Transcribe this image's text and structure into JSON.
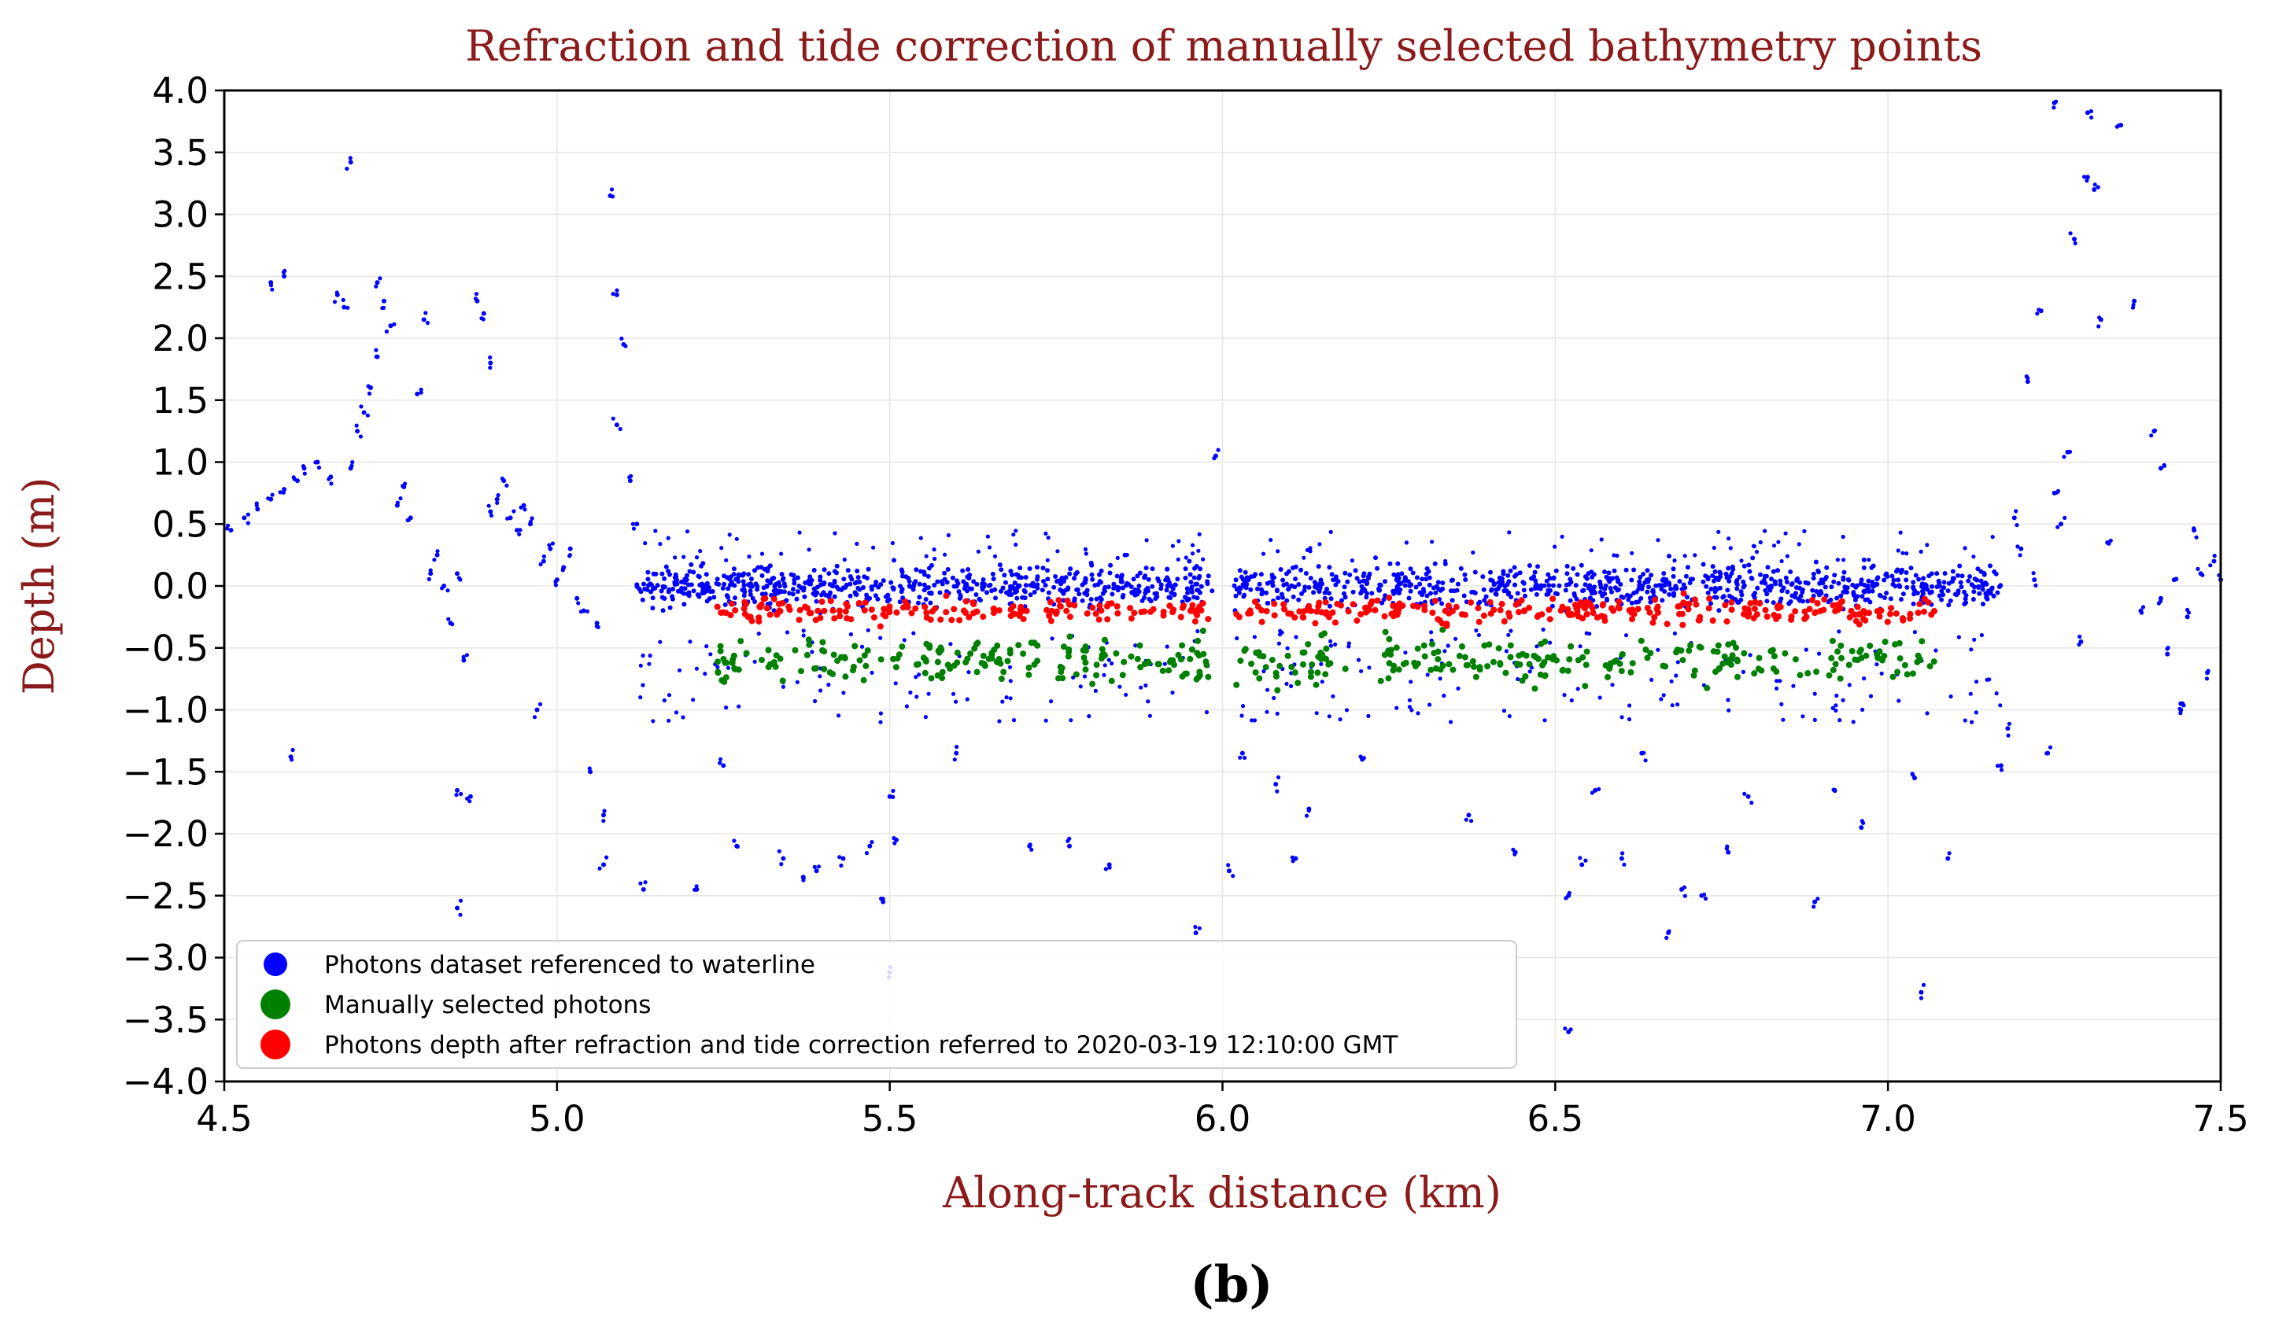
{
  "colors": {
    "waterline": "#0000ff",
    "manual": "#008000",
    "corrected": "#ff0000",
    "text_accent": "#8b1a1a",
    "grid": "#e6e6e6"
  },
  "panel_label": "(b)",
  "chart_data": {
    "type": "scatter",
    "title": "Refraction and tide correction of manually selected bathymetry points",
    "xlabel": "Along-track distance (km)",
    "ylabel": "Depth (m)",
    "xlim": [
      4.5,
      7.5
    ],
    "ylim": [
      -4.0,
      4.0
    ],
    "grid": true,
    "xticks": [
      4.5,
      5.0,
      5.5,
      6.0,
      6.5,
      7.0,
      7.5
    ],
    "xtick_labels": [
      "4.5",
      "5.0",
      "5.5",
      "6.0",
      "6.5",
      "7.0",
      "7.5"
    ],
    "yticks": [
      4.0,
      3.5,
      3.0,
      2.5,
      2.0,
      1.5,
      1.0,
      0.5,
      0.0,
      -0.5,
      -1.0,
      -1.5,
      -2.0,
      -2.5,
      -3.0,
      -3.5,
      -4.0
    ],
    "ytick_labels": [
      "4.0",
      "3.5",
      "3.0",
      "2.5",
      "2.0",
      "1.5",
      "1.0",
      "0.5",
      "0.0",
      "−0.5",
      "−1.0",
      "−1.5",
      "−2.0",
      "−2.5",
      "−3.0",
      "−3.5",
      "−4.0"
    ],
    "legend_position": "lower-left",
    "series": [
      {
        "name": "Photons dataset referenced to waterline",
        "color": "#0000ff",
        "dense_band": {
          "x_start": 5.12,
          "x_end": 7.17,
          "gap": [
            5.985,
            6.015
          ],
          "center": 0.0,
          "spread": 0.12,
          "count": 1400
        },
        "points": [
          [
            4.51,
            0.45
          ],
          [
            4.53,
            0.55
          ],
          [
            4.55,
            0.62
          ],
          [
            4.57,
            0.7
          ],
          [
            4.59,
            0.78
          ],
          [
            4.61,
            0.85
          ],
          [
            4.62,
            0.95
          ],
          [
            4.64,
            1.0
          ],
          [
            4.66,
            0.88
          ],
          [
            4.67,
            2.35
          ],
          [
            4.68,
            2.25
          ],
          [
            4.69,
            0.95
          ],
          [
            4.7,
            1.25
          ],
          [
            4.71,
            1.4
          ],
          [
            4.72,
            1.6
          ],
          [
            4.73,
            1.85
          ],
          [
            4.73,
            2.45
          ],
          [
            4.74,
            2.3
          ],
          [
            4.75,
            2.1
          ],
          [
            4.76,
            0.65
          ],
          [
            4.77,
            0.8
          ],
          [
            4.78,
            0.55
          ],
          [
            4.79,
            1.55
          ],
          [
            4.8,
            2.15
          ],
          [
            4.81,
            0.1
          ],
          [
            4.82,
            0.25
          ],
          [
            4.83,
            0.0
          ],
          [
            4.84,
            -0.3
          ],
          [
            4.85,
            0.1
          ],
          [
            4.86,
            -0.6
          ],
          [
            4.87,
            -1.7
          ],
          [
            4.88,
            2.3
          ],
          [
            4.89,
            2.2
          ],
          [
            4.9,
            1.8
          ],
          [
            4.9,
            0.6
          ],
          [
            4.91,
            0.7
          ],
          [
            4.92,
            0.85
          ],
          [
            4.93,
            0.55
          ],
          [
            4.94,
            0.45
          ],
          [
            4.95,
            0.65
          ],
          [
            4.96,
            0.5
          ],
          [
            4.97,
            -1.0
          ],
          [
            4.98,
            0.2
          ],
          [
            4.99,
            0.3
          ],
          [
            5.0,
            0.05
          ],
          [
            5.01,
            0.15
          ],
          [
            5.02,
            0.3
          ],
          [
            5.03,
            -0.1
          ],
          [
            5.04,
            -0.2
          ],
          [
            5.05,
            -1.5
          ],
          [
            5.06,
            -0.3
          ],
          [
            5.07,
            -1.85
          ],
          [
            5.08,
            3.15
          ],
          [
            5.09,
            1.3
          ],
          [
            5.09,
            2.35
          ],
          [
            5.1,
            1.95
          ],
          [
            5.11,
            0.85
          ],
          [
            5.12,
            0.5
          ],
          [
            4.69,
            3.42
          ],
          [
            4.59,
            2.5
          ],
          [
            4.57,
            2.45
          ],
          [
            4.6,
            -1.38
          ],
          [
            4.85,
            -2.6
          ],
          [
            4.85,
            -1.65
          ],
          [
            5.07,
            -2.25
          ],
          [
            5.13,
            -2.45
          ],
          [
            5.21,
            -2.45
          ],
          [
            5.25,
            -1.45
          ],
          [
            5.27,
            -2.1
          ],
          [
            5.34,
            -2.2
          ],
          [
            5.37,
            -2.35
          ],
          [
            5.39,
            -2.3
          ],
          [
            5.43,
            -2.2
          ],
          [
            5.47,
            -2.1
          ],
          [
            5.49,
            -2.55
          ],
          [
            5.5,
            -1.7
          ],
          [
            5.51,
            -2.05
          ],
          [
            5.5,
            -3.12
          ],
          [
            5.6,
            -1.35
          ],
          [
            5.71,
            -2.1
          ],
          [
            5.77,
            -2.1
          ],
          [
            5.83,
            -2.25
          ],
          [
            5.96,
            -2.8
          ],
          [
            5.99,
            1.05
          ],
          [
            6.01,
            -2.3
          ],
          [
            6.03,
            -1.35
          ],
          [
            6.08,
            -1.6
          ],
          [
            6.11,
            -2.2
          ],
          [
            6.13,
            -1.8
          ],
          [
            6.21,
            -1.4
          ],
          [
            6.37,
            -1.85
          ],
          [
            6.44,
            -2.15
          ],
          [
            6.52,
            -2.5
          ],
          [
            6.54,
            -2.25
          ],
          [
            6.56,
            -1.65
          ],
          [
            6.6,
            -2.2
          ],
          [
            6.63,
            -1.35
          ],
          [
            6.67,
            -2.8
          ],
          [
            6.69,
            -2.45
          ],
          [
            6.72,
            -2.5
          ],
          [
            6.76,
            -2.15
          ],
          [
            6.79,
            -1.7
          ],
          [
            6.89,
            -2.55
          ],
          [
            6.92,
            -1.65
          ],
          [
            6.96,
            -1.95
          ],
          [
            7.04,
            -1.55
          ],
          [
            7.05,
            -3.28
          ],
          [
            7.09,
            -2.2
          ],
          [
            6.52,
            -3.6
          ],
          [
            7.17,
            -1.45
          ],
          [
            7.18,
            -1.15
          ],
          [
            7.19,
            0.55
          ],
          [
            7.2,
            0.3
          ],
          [
            7.22,
            0.05
          ],
          [
            7.23,
            2.22
          ],
          [
            7.24,
            -1.35
          ],
          [
            7.25,
            0.75
          ],
          [
            7.26,
            0.5
          ],
          [
            7.27,
            1.08
          ],
          [
            7.28,
            2.8
          ],
          [
            7.29,
            -0.45
          ],
          [
            7.3,
            3.3
          ],
          [
            7.31,
            3.2
          ],
          [
            7.32,
            2.15
          ],
          [
            7.33,
            0.35
          ],
          [
            7.35,
            3.72
          ],
          [
            7.37,
            2.3
          ],
          [
            7.38,
            -0.2
          ],
          [
            7.4,
            1.25
          ],
          [
            7.41,
            0.95
          ],
          [
            7.41,
            -0.1
          ],
          [
            7.42,
            -0.55
          ],
          [
            7.43,
            0.05
          ],
          [
            7.44,
            -0.95
          ],
          [
            7.45,
            -0.25
          ],
          [
            7.46,
            0.45
          ],
          [
            7.47,
            0.1
          ],
          [
            7.48,
            -0.7
          ],
          [
            7.49,
            0.2
          ],
          [
            7.5,
            0.05
          ],
          [
            7.25,
            3.9
          ],
          [
            7.3,
            3.82
          ],
          [
            7.44,
            -1.0
          ],
          [
            7.21,
            1.65
          ]
        ]
      },
      {
        "name": "Manually selected photons",
        "color": "#008000",
        "cluster": {
          "x_start": 5.24,
          "x_end": 7.07,
          "gap": [
            5.98,
            6.02
          ],
          "center": -0.6,
          "spread": 0.13,
          "count": 420
        }
      },
      {
        "name": "Photons depth after refraction and tide correction referred to 2020-03-19 12:10:00 GMT",
        "color": "#ff0000",
        "cluster": {
          "x_start": 5.24,
          "x_end": 7.07,
          "gap": [
            5.98,
            6.02
          ],
          "center": -0.2,
          "spread": 0.07,
          "count": 420
        }
      }
    ]
  }
}
